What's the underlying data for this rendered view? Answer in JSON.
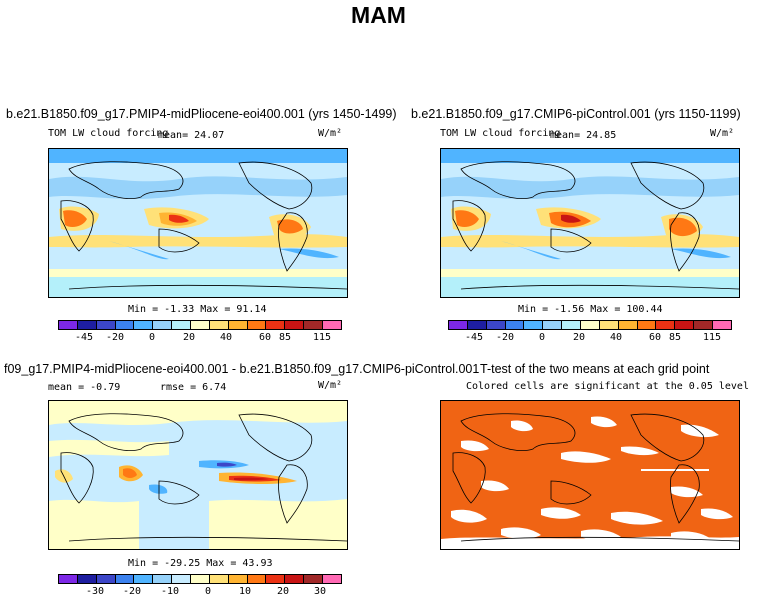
{
  "title": "MAM",
  "panels": [
    {
      "title": "b.e21.B1850.f09_g17.PMIP4-midPliocene-eoi400.001 (yrs 1450-1499)",
      "variable": "TOM LW cloud forcing",
      "mean_text": "mean=   24.07",
      "units": "W/m²",
      "minmax": "Min =  -1.33 Max =  91.14",
      "colorbar_ticks": [
        "-45",
        "-20",
        "0",
        "20",
        "40",
        "60",
        "85",
        "115"
      ],
      "field": "mean_state"
    },
    {
      "title": "b.e21.B1850.f09_g17.CMIP6-piControl.001 (yrs 1150-1199)",
      "variable": "TOM LW cloud forcing",
      "mean_text": "mean=   24.85",
      "units": "W/m²",
      "minmax": "Min =  -1.56 Max = 100.44",
      "colorbar_ticks": [
        "-45",
        "-20",
        "0",
        "20",
        "40",
        "60",
        "85",
        "115"
      ],
      "field": "mean_state"
    },
    {
      "title": "f09_g17.PMIP4-midPliocene-eoi400.001 - b.e21.B1850.f09_g17.CMIP6-piControl.001",
      "mean_text": "mean =  -0.79",
      "rmse_text": "rmse =   6.74",
      "units": "W/m²",
      "minmax": "Min = -29.25 Max =  43.93",
      "colorbar_ticks": [
        "-30",
        "-20",
        "-10",
        "0",
        "10",
        "20",
        "30"
      ],
      "field": "difference"
    },
    {
      "title": "T-test of the two means at each grid point",
      "subtitle": "Colored cells are significant at the 0.05 level",
      "field": "significance"
    }
  ],
  "colors": {
    "mean_colorbar": [
      "#7d28e6",
      "#1e1ea0",
      "#3c46c8",
      "#3c82ef",
      "#50b4ff",
      "#96d2fa",
      "#b4f0fa",
      "#ffffc8",
      "#ffe178",
      "#ffb432",
      "#ff7814",
      "#eb3214",
      "#c81414",
      "#a02828",
      "#ff69b4"
    ],
    "diff_colorbar": [
      "#7d28e6",
      "#1e1ea0",
      "#3c46c8",
      "#3c82ef",
      "#50b4ff",
      "#96d2fa",
      "#c8ecff",
      "#ffffc8",
      "#ffe178",
      "#ffb432",
      "#ff7814",
      "#eb3214",
      "#c81414",
      "#a02828",
      "#ff69b4"
    ],
    "significance": "#f06414",
    "land_outline": "#000000"
  }
}
